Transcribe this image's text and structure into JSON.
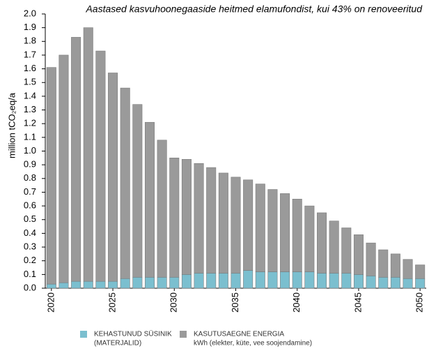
{
  "chart_data": {
    "type": "stacked-bar",
    "title": "Aastased kasvuhoonegaaside heitmed elamufondist, kui 43% on renoveeritud",
    "y_label": "million tCO₂eq/a",
    "x": [
      2020,
      2021,
      2022,
      2023,
      2024,
      2025,
      2026,
      2027,
      2028,
      2029,
      2030,
      2031,
      2032,
      2033,
      2034,
      2035,
      2036,
      2037,
      2038,
      2039,
      2040,
      2041,
      2042,
      2043,
      2044,
      2045,
      2046,
      2047,
      2048,
      2049,
      2050
    ],
    "xlim": [
      2019.5,
      2050.5
    ],
    "xticks": [
      2020,
      2025,
      2030,
      2035,
      2040,
      2045,
      2050
    ],
    "ylim": [
      0,
      2
    ],
    "yticks": [
      {
        "value": 0,
        "label": "0.0"
      },
      0.1,
      0.2,
      0.3,
      0.4,
      0.5,
      0.6,
      0.7,
      0.8,
      0.9,
      {
        "value": 1,
        "label": "1.0"
      },
      1.1,
      1.2,
      1.3,
      1.4,
      1.5,
      1.6,
      1.7,
      1.8,
      1.9,
      {
        "value": 2,
        "label": "2.0"
      }
    ],
    "grid": false,
    "series": [
      {
        "name": "KEHASTUNUD SÜSINIK",
        "note": "(MATERJALID)",
        "color": "#7bbfcf",
        "values": [
          0.03,
          0.04,
          0.05,
          0.05,
          0.05,
          0.05,
          0.07,
          0.08,
          0.08,
          0.08,
          0.08,
          0.1,
          0.11,
          0.11,
          0.11,
          0.11,
          0.13,
          0.12,
          0.12,
          0.12,
          0.12,
          0.12,
          0.11,
          0.11,
          0.11,
          0.1,
          0.09,
          0.08,
          0.08,
          0.07,
          0.07
        ]
      },
      {
        "name": "KASUTUSAEGNE ENERGIA",
        "note": "kWh (elekter, küte, vee soojendamine)",
        "color": "#9a9a9a",
        "values": [
          1.58,
          1.66,
          1.78,
          1.85,
          1.68,
          1.52,
          1.39,
          1.26,
          1.13,
          1.0,
          0.87,
          0.84,
          0.8,
          0.77,
          0.73,
          0.7,
          0.66,
          0.64,
          0.6,
          0.57,
          0.53,
          0.48,
          0.44,
          0.38,
          0.33,
          0.29,
          0.24,
          0.2,
          0.17,
          0.14,
          0.1
        ]
      }
    ]
  }
}
